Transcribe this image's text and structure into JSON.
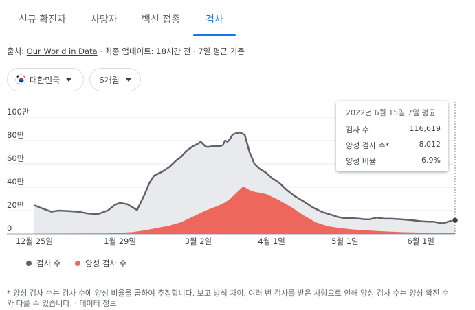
{
  "tabs": [
    {
      "label": "신규 확진자",
      "active": false
    },
    {
      "label": "사망자",
      "active": false
    },
    {
      "label": "백신 접종",
      "active": false
    },
    {
      "label": "검사",
      "active": true
    }
  ],
  "source": {
    "prefix": "출처: ",
    "link": "Our World in Data",
    "suffix": " · 최종 업데이트: 18시간 전 · 7일 평균 기준"
  },
  "filters": {
    "country": "대한민국",
    "period": "6개월"
  },
  "tooltip": {
    "date": "2022년 6월 15일 7일 평균",
    "rows": [
      {
        "label": "검사 수",
        "value": "116,619"
      },
      {
        "label": "양성 검사 수*",
        "value": "8,012"
      },
      {
        "label": "양성 비율",
        "value": "6.9%"
      }
    ]
  },
  "legend": [
    {
      "label": "검사 수",
      "color": "#5f6368"
    },
    {
      "label": "양성 검사 수",
      "color": "#ee675c"
    }
  ],
  "footnote": {
    "text": "* 양성 검사 수는 검사 수에 양성 비율을 곱하여 추정합니다. 보고 방식 차이, 여러 번 검사를 받은 사람으로 인해 양성 검사 수는 양성 확진 수와 다를 수 있습니다. · ",
    "link": "데이터 정보"
  },
  "colors": {
    "accent": "#1a73e8",
    "tests_line": "#5f6368",
    "tests_fill": "#e8eaed",
    "positive_fill": "#ee675c"
  },
  "chart_data": {
    "type": "area",
    "title": "",
    "xlabel": "",
    "ylabel": "",
    "x_tick_labels": [
      "12월 25일",
      "1월 29일",
      "3월 2일",
      "4월 1일",
      "5월 1일",
      "6월 1일"
    ],
    "x_tick_days": [
      0,
      35,
      67,
      97,
      127,
      158
    ],
    "y_tick_labels": [
      "0",
      "20만",
      "40만",
      "60만",
      "80만",
      "100만"
    ],
    "y_ticks": [
      0,
      200000,
      400000,
      600000,
      800000,
      1000000
    ],
    "ylim": [
      0,
      1000000
    ],
    "x_start": "2021-12-25",
    "x_end": "2022-06-15",
    "grid": true,
    "series": [
      {
        "name": "검사 수",
        "x": [
          0,
          3,
          7,
          10,
          14,
          18,
          22,
          26,
          30,
          33,
          35,
          38,
          40,
          42,
          45,
          47,
          49,
          52,
          55,
          58,
          60,
          62,
          65,
          67,
          68,
          70,
          71,
          72,
          75,
          76,
          77,
          78,
          79,
          80,
          81,
          82,
          84,
          86,
          88,
          90,
          92,
          95,
          97,
          100,
          103,
          106,
          110,
          114,
          118,
          122,
          124,
          127,
          130,
          133,
          135,
          137,
          140,
          143,
          146,
          150,
          154,
          158,
          161,
          163,
          167,
          170,
          172
        ],
        "values": [
          245000,
          220000,
          190000,
          200000,
          195000,
          190000,
          175000,
          170000,
          200000,
          250000,
          265000,
          255000,
          230000,
          205000,
          335000,
          435000,
          500000,
          530000,
          570000,
          630000,
          660000,
          710000,
          755000,
          775000,
          790000,
          750000,
          745000,
          750000,
          755000,
          755000,
          760000,
          800000,
          790000,
          815000,
          850000,
          860000,
          870000,
          850000,
          700000,
          600000,
          560000,
          520000,
          480000,
          440000,
          380000,
          330000,
          280000,
          225000,
          185000,
          160000,
          145000,
          135000,
          135000,
          130000,
          125000,
          125000,
          140000,
          130000,
          130000,
          125000,
          118000,
          108000,
          105000,
          105000,
          90000,
          110000,
          117000
        ]
      },
      {
        "name": "양성 검사 수",
        "x": [
          0,
          14,
          30,
          40,
          45,
          50,
          55,
          60,
          65,
          70,
          75,
          78,
          80,
          85,
          86,
          88,
          90,
          93,
          95,
          100,
          105,
          110,
          115,
          120,
          125,
          130,
          140,
          150,
          160,
          172
        ],
        "values": [
          3000,
          3500,
          5000,
          15000,
          30000,
          50000,
          70000,
          100000,
          150000,
          200000,
          240000,
          270000,
          300000,
          400000,
          400000,
          375000,
          360000,
          350000,
          340000,
          290000,
          230000,
          160000,
          100000,
          65000,
          50000,
          38000,
          25000,
          15000,
          10000,
          8000
        ]
      }
    ],
    "tooltip_point": {
      "x": 172,
      "y": 116619
    }
  }
}
